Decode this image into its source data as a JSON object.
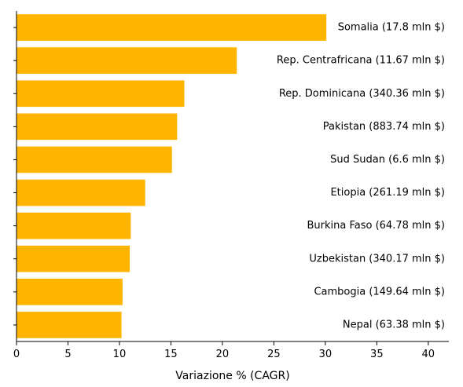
{
  "chart_data": {
    "type": "bar",
    "orientation": "horizontal",
    "categories": [
      "Somalia (17.8 mln $)",
      "Rep. Centrafricana (11.67 mln $)",
      "Rep. Dominicana (340.36 mln $)",
      "Pakistan (883.74 mln $)",
      "Sud Sudan (6.6 mln $)",
      "Etiopia (261.19 mln $)",
      "Burkina Faso (64.78 mln $)",
      "Uzbekistan (340.17 mln $)",
      "Cambogia (149.64 mln $)",
      "Nepal (63.38 mln $)"
    ],
    "values": [
      30.1,
      21.4,
      16.3,
      15.6,
      15.1,
      12.5,
      11.1,
      11.0,
      10.3,
      10.2
    ],
    "xlabel": "Variazione % (CAGR)",
    "ylabel": "",
    "title": "",
    "xlim": [
      0,
      42
    ],
    "xticks": [
      0,
      5,
      10,
      15,
      20,
      25,
      30,
      35,
      40
    ],
    "grid": false,
    "bar_color": "#FFB400",
    "axis_color": "#000000"
  }
}
